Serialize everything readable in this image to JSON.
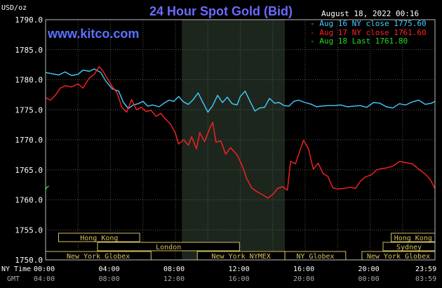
{
  "header": {
    "title": "24 Hour Spot Gold (Bid)",
    "timestamp": "August 18, 2022 00:16",
    "unit": "USD/oz",
    "brand": "www.kitco.com"
  },
  "legend": [
    {
      "label": "Aug 16 NY close 1775.60",
      "color": "#44ccff"
    },
    {
      "label": "Aug 17 NY close 1761.60",
      "color": "#ff2222"
    },
    {
      "label": "Aug 18 Last 1761.80",
      "color": "#22dd22"
    }
  ],
  "axis": {
    "row1_label": "NY Time",
    "row2_label": "GMT",
    "ny_ticks": [
      "00:00",
      "04:00",
      "08:00",
      "12:00",
      "16:00",
      "20:00",
      "23:59"
    ],
    "gmt_ticks": [
      "04:00",
      "08:00",
      "12:00",
      "16:00",
      "20:00",
      "00:00",
      "03:59"
    ]
  },
  "markets": [
    {
      "label": "Hong Kong",
      "row": 0,
      "start": 0.8,
      "end": 5.8
    },
    {
      "label": "Hong Kong",
      "row": 0,
      "start": 21.3,
      "end": 24.0
    },
    {
      "label": "London",
      "row": 1,
      "start": 3.2,
      "end": 11.95
    },
    {
      "label": "Sydney",
      "row": 1,
      "start": 20.8,
      "end": 24.0
    },
    {
      "label": "New York Globex",
      "row": 2,
      "start": 0.0,
      "end": 6.5
    },
    {
      "label": "New York NYMEX",
      "row": 2,
      "start": 9.35,
      "end": 14.75
    },
    {
      "label": "NY Globex",
      "row": 2,
      "start": 14.75,
      "end": 18.5
    },
    {
      "label": "New York Globex",
      "row": 2,
      "start": 19.5,
      "end": 24.0
    }
  ],
  "chart_data": {
    "type": "line",
    "title": "24 Hour Spot Gold (Bid)",
    "ylabel": "USD/oz",
    "xlabel": "NY Time",
    "x_unit": "hours (NY time)",
    "xlim": [
      0,
      24
    ],
    "ylim": [
      1750,
      1790
    ],
    "yticks": [
      "1790.0",
      "1785.0",
      "1780.0",
      "1775.0",
      "1770.0",
      "1765.0",
      "1760.0",
      "1755.0",
      "1750.0"
    ],
    "grid": true,
    "shaded_region": [
      8.4,
      14.75
    ],
    "legend_position": "top-right",
    "series": [
      {
        "name": "Aug 16 NY close 1775.60",
        "color": "#44ccff",
        "points": [
          [
            0,
            1781.2
          ],
          [
            0.4,
            1781.0
          ],
          [
            0.8,
            1780.8
          ],
          [
            1.2,
            1781.3
          ],
          [
            1.6,
            1780.7
          ],
          [
            2.0,
            1780.9
          ],
          [
            2.3,
            1781.6
          ],
          [
            2.7,
            1781.4
          ],
          [
            3.0,
            1781.8
          ],
          [
            3.4,
            1781.2
          ],
          [
            3.7,
            1779.8
          ],
          [
            4.1,
            1778.5
          ],
          [
            4.5,
            1778.1
          ],
          [
            4.8,
            1776.2
          ],
          [
            5.1,
            1775.2
          ],
          [
            5.4,
            1775.8
          ],
          [
            5.7,
            1776.0
          ],
          [
            6.0,
            1776.4
          ],
          [
            6.3,
            1775.6
          ],
          [
            6.6,
            1775.8
          ],
          [
            7.0,
            1775.5
          ],
          [
            7.3,
            1776.1
          ],
          [
            7.6,
            1776.6
          ],
          [
            7.9,
            1776.4
          ],
          [
            8.2,
            1777.2
          ],
          [
            8.5,
            1776.3
          ],
          [
            8.8,
            1775.9
          ],
          [
            9.1,
            1776.7
          ],
          [
            9.4,
            1777.8
          ],
          [
            9.7,
            1776.2
          ],
          [
            10.0,
            1774.6
          ],
          [
            10.3,
            1775.7
          ],
          [
            10.6,
            1777.4
          ],
          [
            10.9,
            1776.2
          ],
          [
            11.2,
            1777.1
          ],
          [
            11.5,
            1776.0
          ],
          [
            11.8,
            1775.8
          ],
          [
            12.0,
            1777.2
          ],
          [
            12.3,
            1778.1
          ],
          [
            12.6,
            1776.4
          ],
          [
            12.9,
            1774.8
          ],
          [
            13.2,
            1775.3
          ],
          [
            13.5,
            1775.4
          ],
          [
            13.8,
            1776.9
          ],
          [
            14.1,
            1776.1
          ],
          [
            14.4,
            1776.2
          ],
          [
            14.7,
            1775.7
          ],
          [
            15.0,
            1775.6
          ],
          [
            15.3,
            1776.4
          ],
          [
            15.6,
            1776.6
          ],
          [
            16.0,
            1776.2
          ],
          [
            16.4,
            1775.9
          ],
          [
            16.7,
            1775.5
          ],
          [
            17.0,
            1775.6
          ],
          [
            17.4,
            1775.7
          ],
          [
            17.8,
            1775.7
          ],
          [
            18.2,
            1775.8
          ],
          [
            18.6,
            1775.5
          ],
          [
            19.0,
            1775.6
          ],
          [
            19.4,
            1775.7
          ],
          [
            19.8,
            1775.4
          ],
          [
            20.2,
            1776.2
          ],
          [
            20.6,
            1776.1
          ],
          [
            21.0,
            1775.5
          ],
          [
            21.4,
            1775.3
          ],
          [
            21.8,
            1776.0
          ],
          [
            22.2,
            1775.8
          ],
          [
            22.6,
            1776.3
          ],
          [
            23.0,
            1776.6
          ],
          [
            23.4,
            1775.9
          ],
          [
            23.8,
            1776.1
          ],
          [
            24.0,
            1776.4
          ]
        ]
      },
      {
        "name": "Aug 17 NY close 1761.60",
        "color": "#ff2222",
        "points": [
          [
            0,
            1777.0
          ],
          [
            0.3,
            1776.6
          ],
          [
            0.6,
            1777.4
          ],
          [
            0.9,
            1778.6
          ],
          [
            1.2,
            1779.0
          ],
          [
            1.6,
            1778.8
          ],
          [
            2.0,
            1779.3
          ],
          [
            2.3,
            1778.6
          ],
          [
            2.7,
            1780.3
          ],
          [
            3.0,
            1780.9
          ],
          [
            3.3,
            1782.2
          ],
          [
            3.5,
            1781.6
          ],
          [
            3.8,
            1780.2
          ],
          [
            4.1,
            1778.9
          ],
          [
            4.4,
            1777.8
          ],
          [
            4.7,
            1775.4
          ],
          [
            5.0,
            1774.6
          ],
          [
            5.3,
            1776.7
          ],
          [
            5.6,
            1775.0
          ],
          [
            5.9,
            1775.4
          ],
          [
            6.2,
            1774.7
          ],
          [
            6.5,
            1774.9
          ],
          [
            6.8,
            1773.9
          ],
          [
            7.1,
            1774.4
          ],
          [
            7.4,
            1773.4
          ],
          [
            7.7,
            1772.6
          ],
          [
            8.0,
            1771.1
          ],
          [
            8.2,
            1769.3
          ],
          [
            8.5,
            1770.0
          ],
          [
            8.8,
            1769.1
          ],
          [
            9.0,
            1770.5
          ],
          [
            9.3,
            1768.5
          ],
          [
            9.5,
            1771.2
          ],
          [
            9.8,
            1769.7
          ],
          [
            10.1,
            1771.8
          ],
          [
            10.3,
            1772.9
          ],
          [
            10.5,
            1769.6
          ],
          [
            10.8,
            1769.8
          ],
          [
            11.1,
            1767.6
          ],
          [
            11.4,
            1768.7
          ],
          [
            11.8,
            1767.5
          ],
          [
            12.1,
            1765.8
          ],
          [
            12.4,
            1763.5
          ],
          [
            12.7,
            1762.0
          ],
          [
            13.0,
            1761.4
          ],
          [
            13.4,
            1760.8
          ],
          [
            13.7,
            1760.3
          ],
          [
            14.0,
            1760.9
          ],
          [
            14.3,
            1761.9
          ],
          [
            14.6,
            1762.2
          ],
          [
            14.9,
            1761.6
          ],
          [
            15.1,
            1766.4
          ],
          [
            15.4,
            1766.0
          ],
          [
            15.7,
            1768.4
          ],
          [
            15.9,
            1769.9
          ],
          [
            16.2,
            1768.5
          ],
          [
            16.5,
            1765.1
          ],
          [
            16.8,
            1766.1
          ],
          [
            17.1,
            1764.4
          ],
          [
            17.4,
            1763.9
          ],
          [
            17.7,
            1762.0
          ],
          [
            18.0,
            1761.8
          ],
          [
            18.4,
            1761.9
          ],
          [
            18.8,
            1762.1
          ],
          [
            19.1,
            1761.9
          ],
          [
            19.4,
            1763.1
          ],
          [
            19.7,
            1763.8
          ],
          [
            20.1,
            1764.2
          ],
          [
            20.4,
            1765.0
          ],
          [
            20.7,
            1765.2
          ],
          [
            21.0,
            1765.3
          ],
          [
            21.4,
            1765.6
          ],
          [
            21.8,
            1766.4
          ],
          [
            22.2,
            1766.2
          ],
          [
            22.6,
            1766.0
          ],
          [
            23.0,
            1765.1
          ],
          [
            23.4,
            1764.3
          ],
          [
            23.7,
            1763.4
          ],
          [
            24.0,
            1761.9
          ]
        ]
      },
      {
        "name": "Aug 18 Last 1761.80",
        "color": "#22dd22",
        "points": [
          [
            0.0,
            1761.8
          ],
          [
            0.1,
            1762.1
          ],
          [
            0.2,
            1762.3
          ]
        ]
      }
    ]
  }
}
